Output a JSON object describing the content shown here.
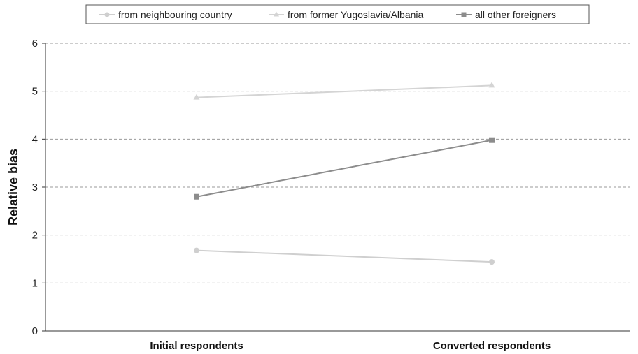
{
  "chart_data": {
    "type": "line",
    "categories": [
      "Initial respondents",
      "Converted respondents"
    ],
    "series": [
      {
        "name": "from neighbouring country",
        "values": [
          1.68,
          1.44
        ],
        "color": "#cfcfcf",
        "marker": "circle"
      },
      {
        "name": "from former Yugoslavia/Albania",
        "values": [
          4.87,
          5.12
        ],
        "color": "#d4d4d4",
        "marker": "triangle"
      },
      {
        "name": "all other foreigners",
        "values": [
          2.8,
          3.98
        ],
        "color": "#8c8c8c",
        "marker": "square"
      }
    ],
    "title": "",
    "xlabel": "",
    "ylabel": "Relative bias",
    "ylim": [
      0,
      6
    ],
    "yticks": [
      "0",
      "1",
      "2",
      "3",
      "4",
      "5",
      "6"
    ],
    "grid": true,
    "legend_position": "top-center"
  }
}
